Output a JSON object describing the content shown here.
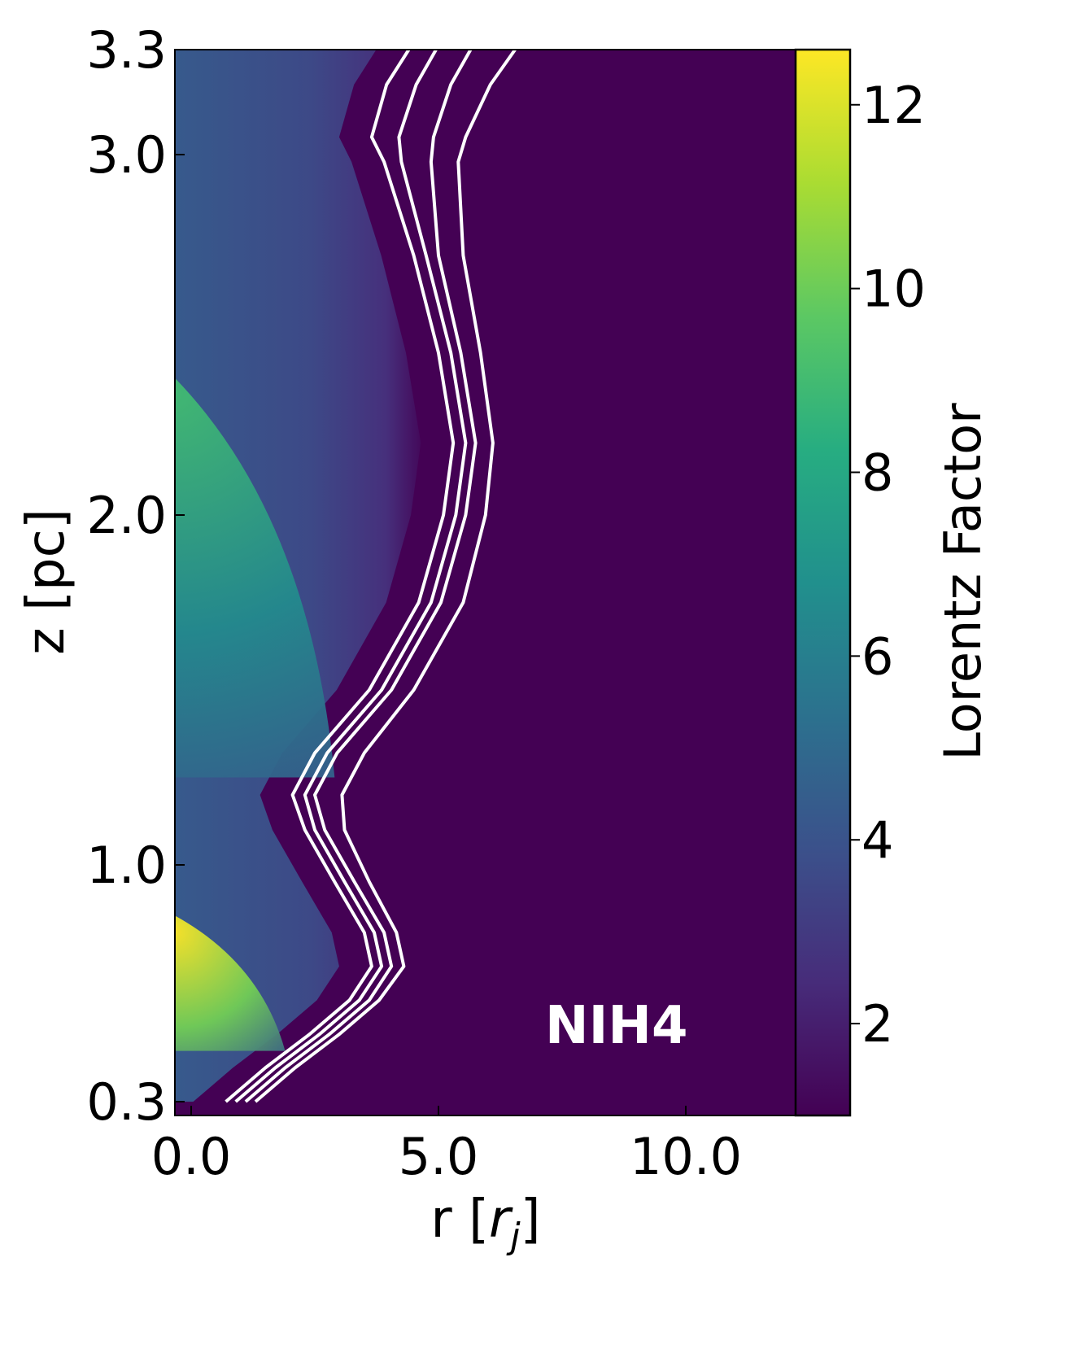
{
  "chart_data": {
    "type": "heatmap",
    "title": "",
    "xlabel": "r [r_j]",
    "xlabel_main": "r [",
    "xlabel_symbol": "r",
    "xlabel_subscript": "j",
    "xlabel_close": "]",
    "ylabel": "z [pc]",
    "xlim": [
      -0.3,
      12.2
    ],
    "ylim": [
      0.3,
      3.3
    ],
    "x_ticks": [
      0.0,
      5.0,
      10.0
    ],
    "x_tick_labels": [
      "0.0",
      "5.0",
      "10.0"
    ],
    "y_ticks": [
      0.3,
      1.0,
      2.0,
      3.0,
      3.3
    ],
    "y_tick_labels": [
      "0.3",
      "1.0",
      "2.0",
      "3.0",
      "3.3"
    ],
    "colorbar": {
      "label": "Lorentz Factor",
      "range": [
        1.0,
        12.6
      ],
      "ticks": [
        2,
        4,
        6,
        8,
        10,
        12
      ],
      "tick_labels": [
        "2",
        "4",
        "6",
        "8",
        "10",
        "12"
      ],
      "colormap": "viridis",
      "colormap_stops": [
        "#440154",
        "#472c7a",
        "#3b518b",
        "#2c718e",
        "#21908d",
        "#27ad81",
        "#5cc863",
        "#aadc32",
        "#fde725"
      ]
    },
    "annotation": "NIH4",
    "background_color": "#440154",
    "contour_color": "#ffffff",
    "contours": [
      {
        "r": [
          0.7,
          1.5,
          2.4,
          3.2,
          3.65,
          3.5,
          2.9,
          2.3,
          2.05,
          2.5,
          3.6,
          4.6,
          5.1,
          5.3,
          5.0,
          4.5,
          3.9,
          3.65,
          3.95,
          4.4
        ],
        "z": [
          0.3,
          0.4,
          0.5,
          0.6,
          0.7,
          0.8,
          0.95,
          1.1,
          1.2,
          1.32,
          1.5,
          1.75,
          2.0,
          2.2,
          2.45,
          2.72,
          2.98,
          3.05,
          3.2,
          3.3
        ]
      },
      {
        "r": [
          0.9,
          1.7,
          2.6,
          3.4,
          3.85,
          3.7,
          3.1,
          2.5,
          2.3,
          2.75,
          3.85,
          4.85,
          5.35,
          5.55,
          5.25,
          4.75,
          4.25,
          4.2,
          4.55,
          4.95
        ],
        "z": [
          0.3,
          0.4,
          0.5,
          0.6,
          0.7,
          0.8,
          0.95,
          1.1,
          1.2,
          1.32,
          1.5,
          1.75,
          2.0,
          2.2,
          2.45,
          2.72,
          2.98,
          3.05,
          3.2,
          3.3
        ]
      },
      {
        "r": [
          1.1,
          1.9,
          2.8,
          3.6,
          4.05,
          3.9,
          3.3,
          2.7,
          2.5,
          2.95,
          4.05,
          5.05,
          5.55,
          5.75,
          5.45,
          5.0,
          4.85,
          4.9,
          5.25,
          5.65
        ],
        "z": [
          0.3,
          0.4,
          0.5,
          0.6,
          0.7,
          0.8,
          0.95,
          1.1,
          1.2,
          1.32,
          1.5,
          1.75,
          2.0,
          2.2,
          2.45,
          2.72,
          2.98,
          3.05,
          3.2,
          3.3
        ]
      },
      {
        "r": [
          1.3,
          2.1,
          3.0,
          3.8,
          4.3,
          4.15,
          3.6,
          3.1,
          3.05,
          3.5,
          4.5,
          5.5,
          5.95,
          6.1,
          5.85,
          5.5,
          5.4,
          5.55,
          6.05,
          6.55
        ],
        "z": [
          0.3,
          0.4,
          0.5,
          0.6,
          0.7,
          0.8,
          0.95,
          1.1,
          1.2,
          1.32,
          1.5,
          1.75,
          2.0,
          2.2,
          2.45,
          2.72,
          2.98,
          3.05,
          3.2,
          3.3
        ]
      }
    ]
  }
}
